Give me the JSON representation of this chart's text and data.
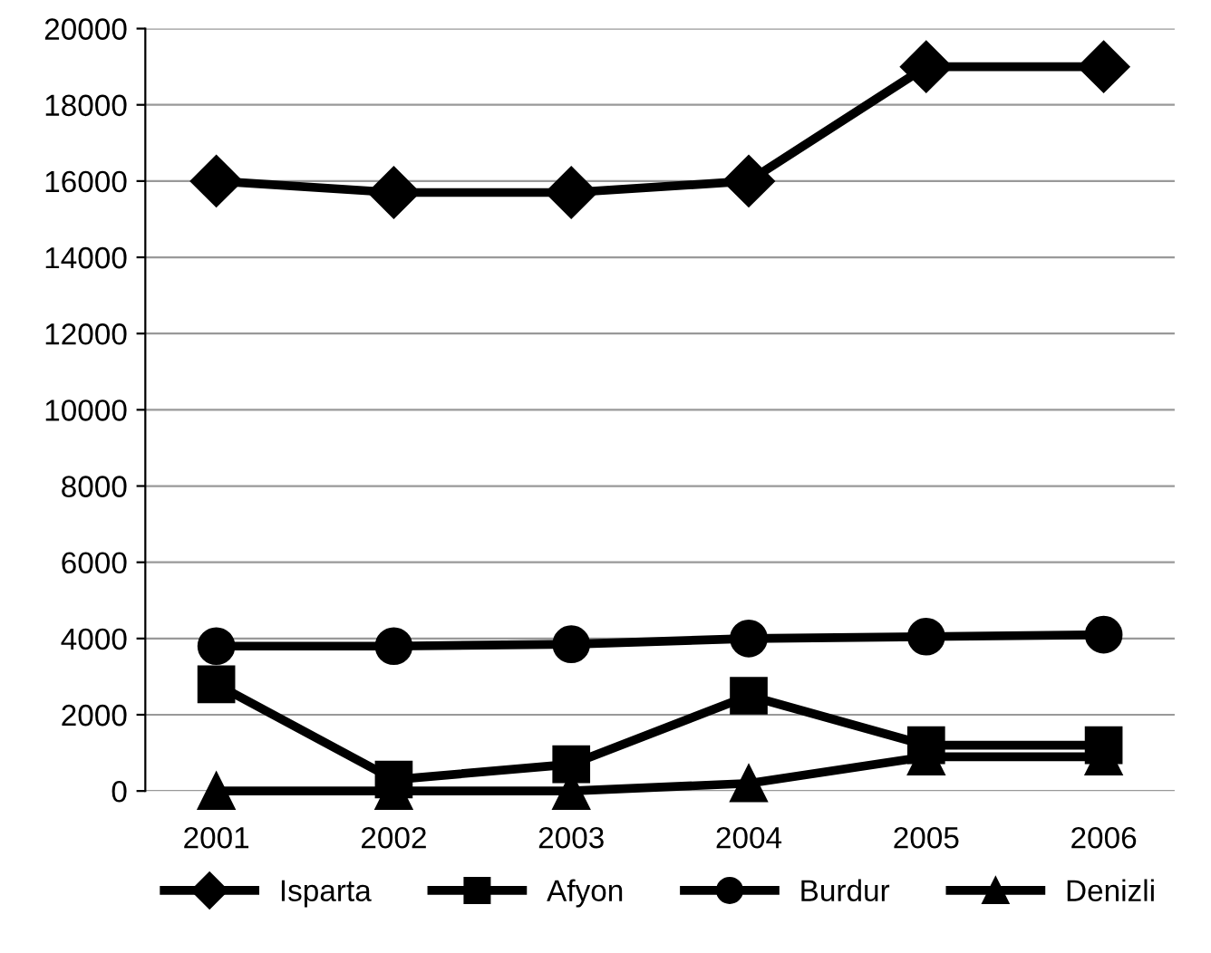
{
  "chart_data": {
    "type": "line",
    "categories": [
      "2001",
      "2002",
      "2003",
      "2004",
      "2005",
      "2006"
    ],
    "series": [
      {
        "name": "Isparta",
        "color": "#000000",
        "marker": "diamond",
        "values": [
          16000,
          15700,
          15700,
          16000,
          19000,
          19000
        ]
      },
      {
        "name": "Afyon",
        "color": "#000000",
        "marker": "square",
        "values": [
          2800,
          300,
          700,
          2500,
          1200,
          1200
        ]
      },
      {
        "name": "Burdur",
        "color": "#000000",
        "marker": "circle",
        "values": [
          3800,
          3800,
          3850,
          4000,
          4050,
          4100
        ]
      },
      {
        "name": "Denizli",
        "color": "#000000",
        "marker": "triangle",
        "values": [
          0,
          0,
          0,
          200,
          900,
          900
        ]
      }
    ],
    "ylim": [
      0,
      20000
    ],
    "yticks": [
      0,
      2000,
      4000,
      6000,
      8000,
      10000,
      12000,
      14000,
      16000,
      18000,
      20000
    ],
    "grid": "y",
    "legend": "bottom",
    "line_style": "solid"
  }
}
